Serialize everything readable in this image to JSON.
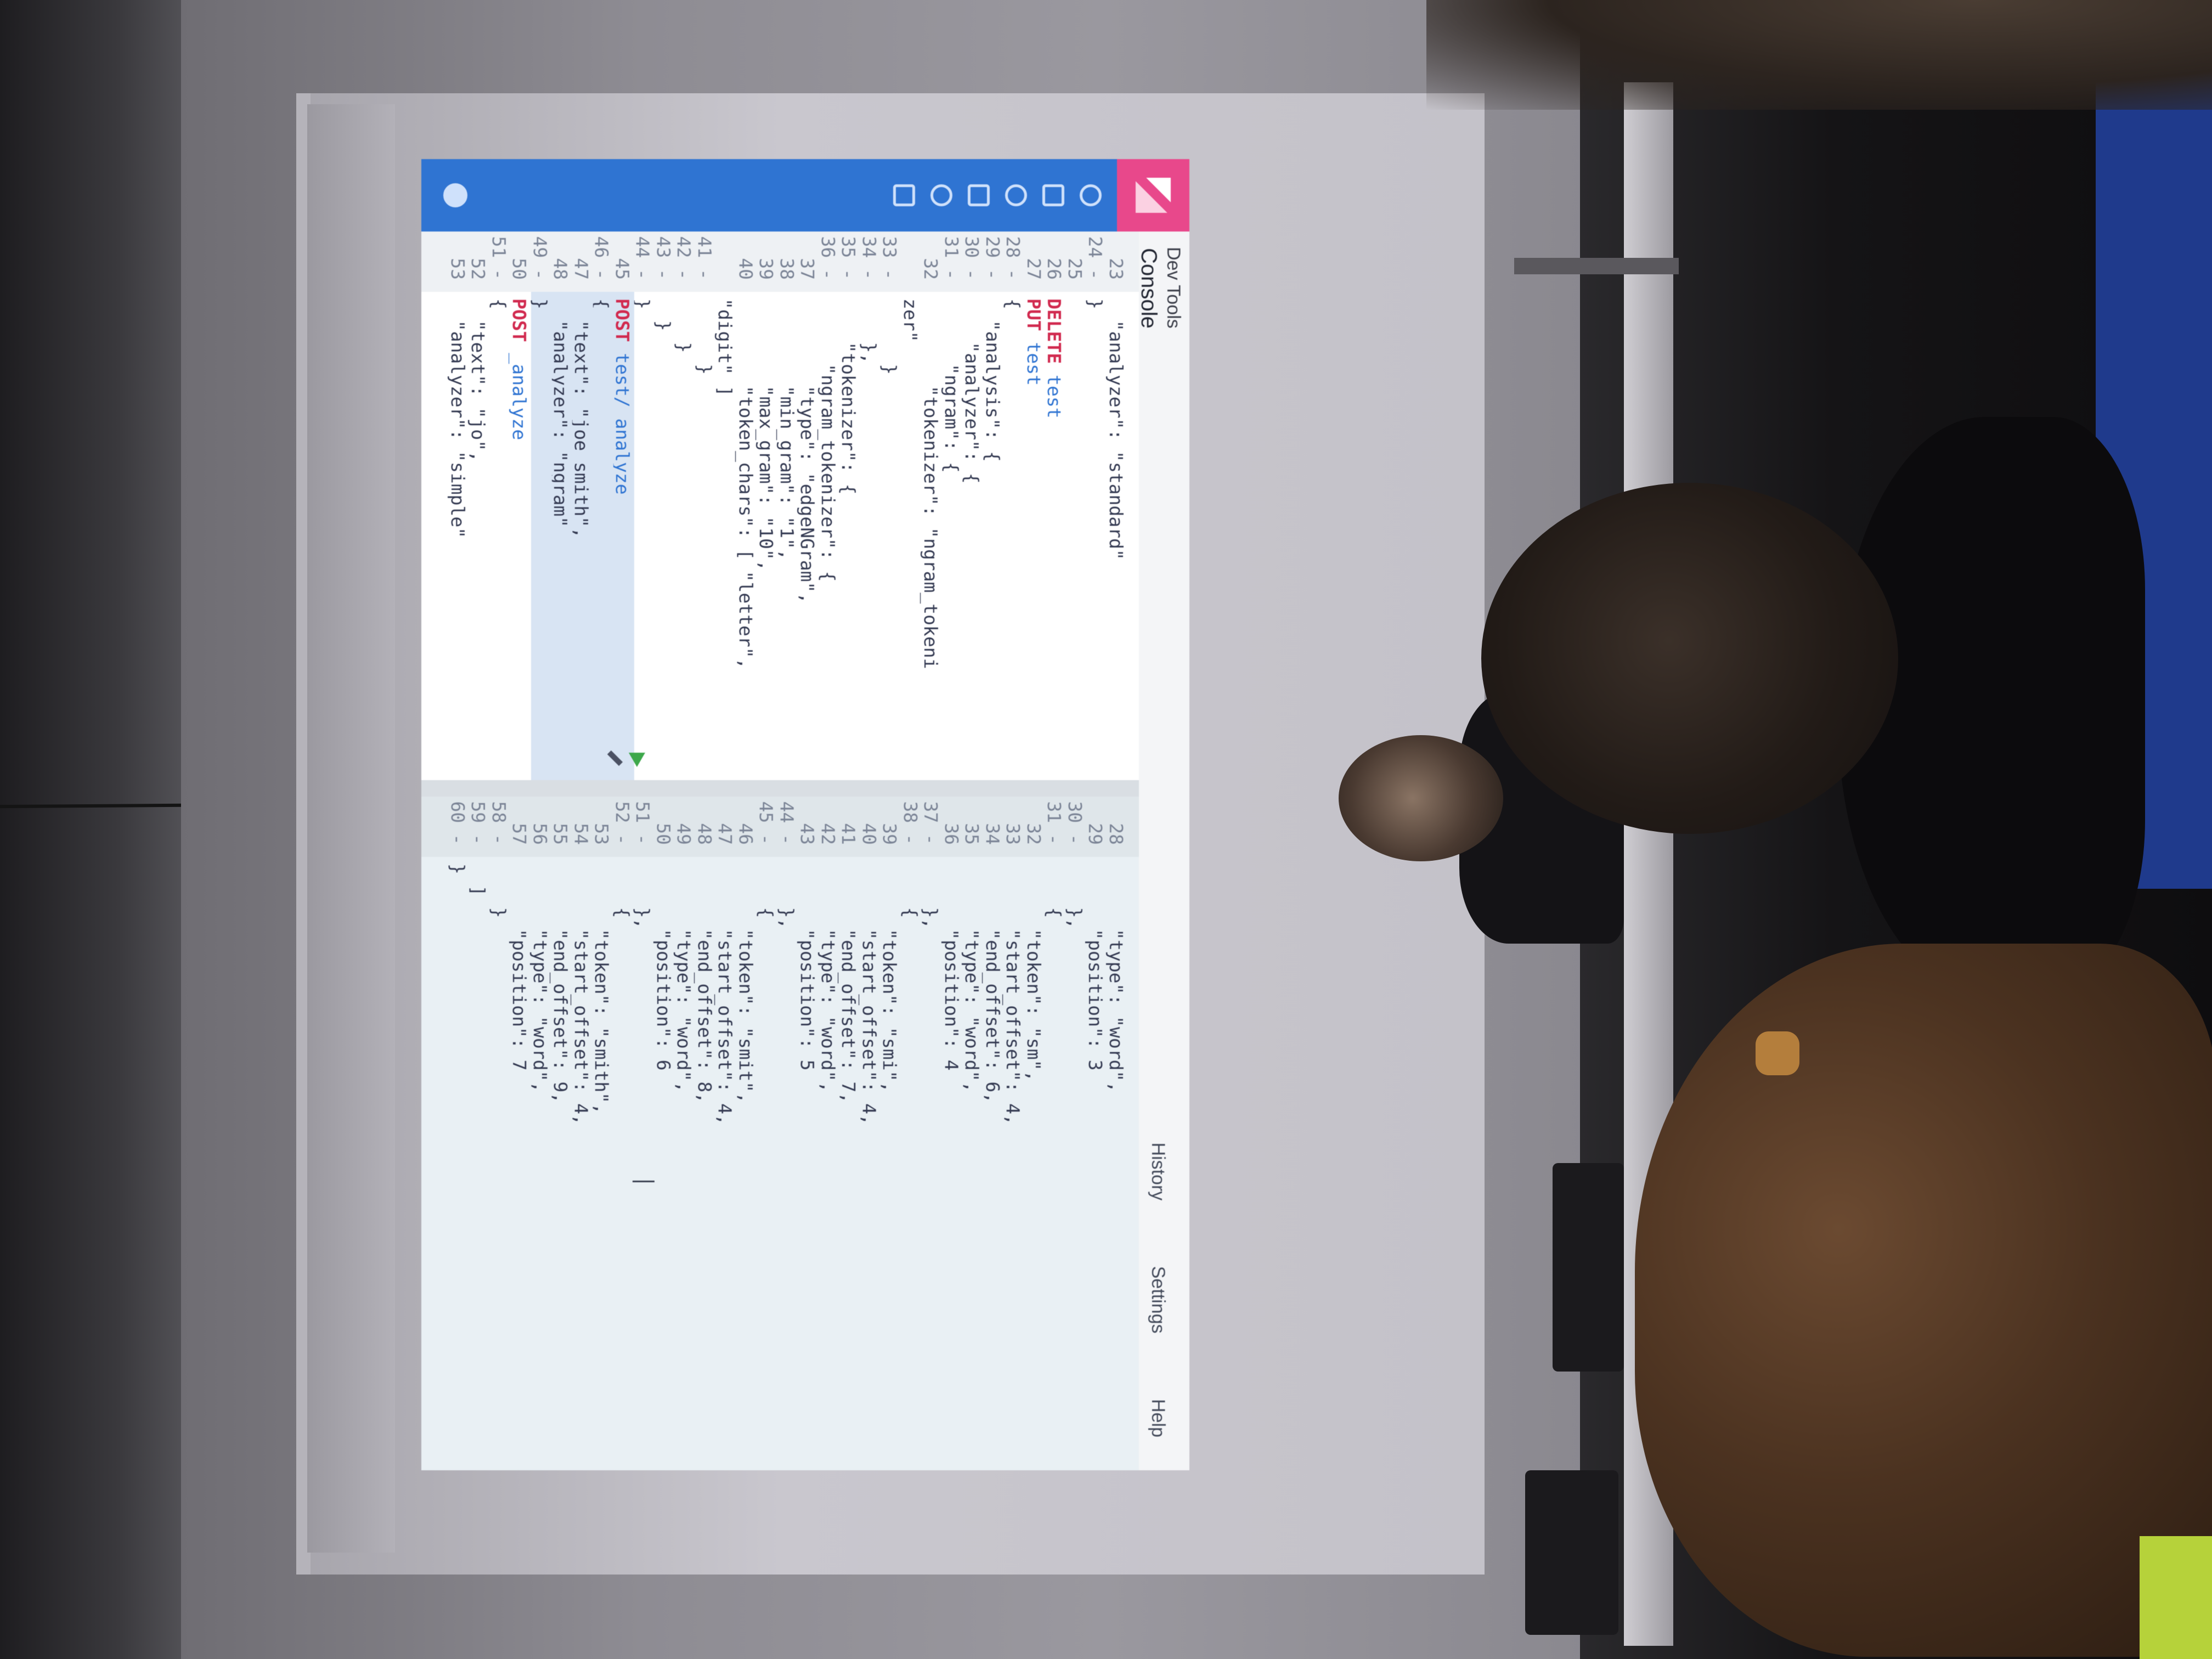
{
  "app": {
    "title": "Dev Tools",
    "tab": "Console",
    "top_links": [
      "History",
      "Settings",
      "Help"
    ]
  },
  "colors": {
    "accent": "#2f74d2",
    "logo": "#e8488b",
    "method": "#d12a4f",
    "run": "#3da84b"
  },
  "sidebar_icons": [
    "discover-icon",
    "visualize-icon",
    "dashboard-icon",
    "timelion-icon",
    "dev-tools-icon",
    "management-icon"
  ],
  "editor_lines": [
    {
      "n": "23",
      "text": "  \"analyzer\": \"standard\""
    },
    {
      "n": "24 -",
      "text": "}"
    },
    {
      "n": "25",
      "text": ""
    },
    {
      "n": "26",
      "method": "DELETE",
      "path": " test"
    },
    {
      "n": "27",
      "method": "PUT",
      "path": " test"
    },
    {
      "n": "28 -",
      "text": "{"
    },
    {
      "n": "29 -",
      "text": "  \"analysis\": {"
    },
    {
      "n": "30 -",
      "text": "    \"analyzer\": {"
    },
    {
      "n": "31 -",
      "text": "      \"ngram\": {"
    },
    {
      "n": "32",
      "text": "        \"tokenizer\": \"ngram_tokeni"
    },
    {
      "n": "",
      "text": "zer\""
    },
    {
      "n": "33 -",
      "text": "      }"
    },
    {
      "n": "34 -",
      "text": "    },"
    },
    {
      "n": "35 -",
      "text": "    \"tokenizer\": {"
    },
    {
      "n": "36 -",
      "text": "      \"ngram_tokenizer\": {"
    },
    {
      "n": "37",
      "text": "        \"type\": \"edgeNGram\","
    },
    {
      "n": "38",
      "text": "        \"min_gram\": \"1\","
    },
    {
      "n": "39",
      "text": "        \"max_gram\": \"10\","
    },
    {
      "n": "40",
      "text": "        \"token_chars\": [ \"letter\","
    },
    {
      "n": "",
      "text": "\"digit\" ]"
    },
    {
      "n": "41 -",
      "text": "      }"
    },
    {
      "n": "42 -",
      "text": "    }"
    },
    {
      "n": "43 -",
      "text": "  }"
    },
    {
      "n": "44 -",
      "text": "}"
    },
    {
      "n": "45",
      "method": "POST",
      "path": " test/_analyze"
    },
    {
      "n": "46 -",
      "text": "{"
    },
    {
      "n": "47",
      "text": "  \"text\": \"joe smith\","
    },
    {
      "n": "48",
      "text": "  \"analyzer\": \"ngram\""
    },
    {
      "n": "49 -",
      "text": "}"
    },
    {
      "n": "50",
      "method": "POST",
      "path": " _analyze"
    },
    {
      "n": "51 -",
      "text": "{"
    },
    {
      "n": "52",
      "text": "  \"text\": \"jo\","
    },
    {
      "n": "53",
      "text": "  \"analyzer\": \"simple\""
    }
  ],
  "output_lines": [
    {
      "n": "28",
      "text": "      \"type\": \"word\","
    },
    {
      "n": "29",
      "text": "      \"position\": 3"
    },
    {
      "n": "30 -",
      "text": "    },"
    },
    {
      "n": "31 -",
      "text": "    {"
    },
    {
      "n": "32",
      "text": "      \"token\": \"sm\","
    },
    {
      "n": "33",
      "text": "      \"start_offset\": 4,"
    },
    {
      "n": "34",
      "text": "      \"end_offset\": 6,"
    },
    {
      "n": "35",
      "text": "      \"type\": \"word\","
    },
    {
      "n": "36",
      "text": "      \"position\": 4"
    },
    {
      "n": "37 -",
      "text": "    },"
    },
    {
      "n": "38 -",
      "text": "    {"
    },
    {
      "n": "39",
      "text": "      \"token\": \"smi\","
    },
    {
      "n": "40",
      "text": "      \"start_offset\": 4,"
    },
    {
      "n": "41",
      "text": "      \"end_offset\": 7,"
    },
    {
      "n": "42",
      "text": "      \"type\": \"word\","
    },
    {
      "n": "43",
      "text": "      \"position\": 5"
    },
    {
      "n": "44 -",
      "text": "    },"
    },
    {
      "n": "45 -",
      "text": "    {"
    },
    {
      "n": "46",
      "text": "      \"token\": \"smit\","
    },
    {
      "n": "47",
      "text": "      \"start_offset\": 4,"
    },
    {
      "n": "48",
      "text": "      \"end_offset\": 8,"
    },
    {
      "n": "49",
      "text": "      \"type\": \"word\","
    },
    {
      "n": "50",
      "text": "      \"position\": 6"
    },
    {
      "n": "51 -",
      "text": "    },"
    },
    {
      "n": "52 -",
      "text": "    {"
    },
    {
      "n": "53",
      "text": "      \"token\": \"smith\","
    },
    {
      "n": "54",
      "text": "      \"start_offset\": 4,"
    },
    {
      "n": "55",
      "text": "      \"end_offset\": 9,"
    },
    {
      "n": "56",
      "text": "      \"type\": \"word\","
    },
    {
      "n": "57",
      "text": "      \"position\": 7"
    },
    {
      "n": "58 -",
      "text": "    }"
    },
    {
      "n": "59 -",
      "text": "  ]"
    },
    {
      "n": "60 -",
      "text": "}"
    }
  ]
}
